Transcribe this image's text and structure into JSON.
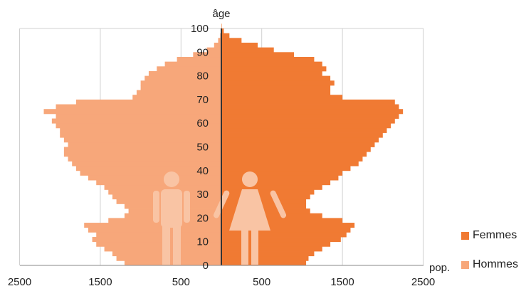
{
  "chart_data": {
    "type": "bar",
    "orientation": "population-pyramid",
    "ylabel": "âge",
    "xlabel": "pop.",
    "ylim": [
      0,
      100
    ],
    "xlim": [
      -2500,
      2500
    ],
    "y_ticks": [
      "0",
      "10",
      "20",
      "30",
      "40",
      "50",
      "60",
      "70",
      "80",
      "90",
      "100"
    ],
    "x_ticks": [
      "2500",
      "1500",
      "500",
      "500",
      "1500",
      "2500"
    ],
    "x_tick_values": [
      -2500,
      -1500,
      -500,
      500,
      1500,
      2500
    ],
    "grid": true,
    "legend_position": "bottom-right",
    "series": [
      {
        "name": "Femmes",
        "color": "#F07A33",
        "ages": [
          0,
          2,
          4,
          6,
          8,
          10,
          12,
          14,
          16,
          18,
          20,
          22,
          24,
          26,
          28,
          30,
          32,
          34,
          36,
          38,
          40,
          42,
          44,
          46,
          48,
          50,
          52,
          54,
          56,
          58,
          60,
          62,
          64,
          66,
          68,
          70,
          72,
          74,
          76,
          78,
          80,
          82,
          84,
          86,
          88,
          90,
          92,
          94,
          96,
          98,
          100
        ],
        "values": [
          1050,
          1080,
          1150,
          1250,
          1350,
          1480,
          1550,
          1600,
          1650,
          1500,
          1250,
          1100,
          1050,
          1050,
          1100,
          1150,
          1250,
          1350,
          1450,
          1500,
          1600,
          1700,
          1750,
          1800,
          1850,
          1900,
          1950,
          2000,
          2050,
          2100,
          2150,
          2200,
          2250,
          2200,
          2150,
          1500,
          1350,
          1350,
          1400,
          1350,
          1250,
          1300,
          1250,
          1150,
          900,
          650,
          450,
          250,
          100,
          30,
          5
        ]
      },
      {
        "name": "Hommes",
        "color": "#F7A77A",
        "ages": [
          0,
          2,
          4,
          6,
          8,
          10,
          12,
          14,
          16,
          18,
          20,
          22,
          24,
          26,
          28,
          30,
          32,
          34,
          36,
          38,
          40,
          42,
          44,
          46,
          48,
          50,
          52,
          54,
          56,
          58,
          60,
          62,
          64,
          66,
          68,
          70,
          72,
          74,
          76,
          78,
          80,
          82,
          84,
          86,
          88,
          90,
          92,
          94,
          96,
          98,
          100
        ],
        "values": [
          1200,
          1300,
          1350,
          1450,
          1550,
          1600,
          1550,
          1650,
          1700,
          1400,
          1200,
          1150,
          1200,
          1300,
          1350,
          1400,
          1450,
          1550,
          1650,
          1750,
          1800,
          1850,
          1900,
          1950,
          1950,
          1900,
          1950,
          2000,
          2000,
          2050,
          2100,
          2050,
          2200,
          2050,
          1800,
          1100,
          1050,
          1000,
          1000,
          950,
          900,
          800,
          700,
          550,
          350,
          180,
          90,
          40,
          15,
          5,
          0
        ]
      }
    ]
  },
  "legend": {
    "femmes": "Femmes",
    "hommes": "Hommes"
  },
  "icons": {
    "male": "man-icon",
    "female": "woman-icon"
  }
}
